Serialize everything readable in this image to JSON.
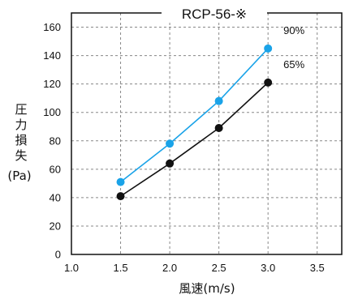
{
  "chart_data": {
    "type": "line",
    "title": "RCP-56-※",
    "xlabel": "風速(m/s)",
    "ylabel_chars": [
      "圧",
      "力",
      "損",
      "失"
    ],
    "ylabel_unit": "(Pa)",
    "xlim": [
      1.0,
      3.75
    ],
    "ylim": [
      0,
      170
    ],
    "xticks": [
      1.0,
      1.5,
      2.0,
      2.5,
      3.0,
      3.5
    ],
    "xtick_labels": [
      "1.0",
      "1.5",
      "2.0",
      "2.5",
      "3.0",
      "3.5"
    ],
    "yticks": [
      0,
      20,
      40,
      60,
      80,
      100,
      120,
      140,
      160
    ],
    "ytick_labels": [
      "0",
      "20",
      "40",
      "60",
      "80",
      "100",
      "120",
      "140",
      "160"
    ],
    "grid": true,
    "series": [
      {
        "name": "90%",
        "color": "#1aa3e8",
        "x": [
          1.5,
          2.0,
          2.5,
          3.0
        ],
        "y": [
          51,
          78,
          108,
          145
        ]
      },
      {
        "name": "65%",
        "color": "#111111",
        "x": [
          1.5,
          2.0,
          2.5,
          3.0
        ],
        "y": [
          41,
          64,
          89,
          121
        ]
      }
    ]
  }
}
